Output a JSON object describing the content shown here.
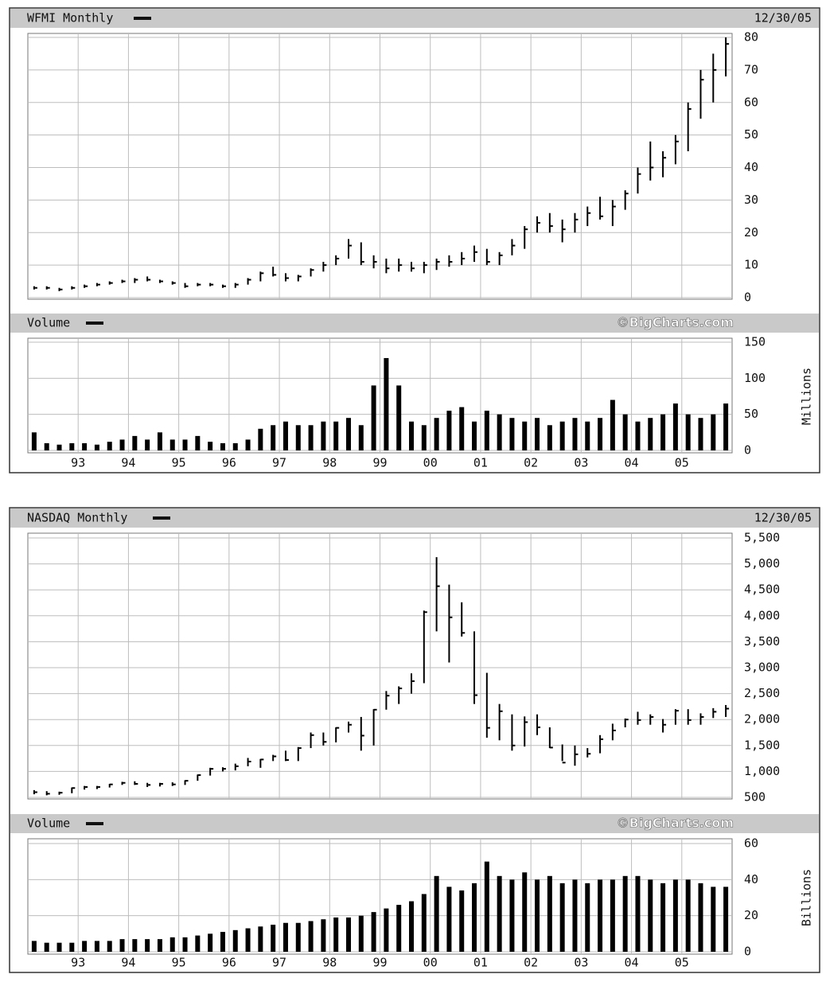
{
  "chart_data": [
    {
      "type": "ohlc",
      "title": "WFMI Monthly",
      "date": "12/30/05",
      "color": "#000000",
      "grid": true,
      "high": [
        3.5,
        3.5,
        3,
        3.5,
        4,
        4.5,
        5,
        5.5,
        6,
        6.5,
        5.5,
        5,
        4.5,
        4.5,
        4.5,
        4,
        4.5,
        6,
        8,
        9.5,
        7.5,
        7,
        9,
        11,
        13,
        18,
        17,
        13,
        12,
        12,
        11,
        11,
        12,
        13,
        14,
        16,
        15,
        14,
        18,
        22,
        25,
        26,
        24,
        26,
        28,
        31,
        30,
        33,
        40,
        48,
        45,
        50,
        60,
        70,
        75,
        80
      ],
      "low": [
        2.5,
        2.5,
        2,
        2.5,
        3,
        3.5,
        4,
        4.5,
        4.5,
        5,
        4.5,
        4,
        3,
        3.5,
        3.5,
        3,
        3,
        4,
        5,
        6.5,
        5,
        5,
        6.5,
        8,
        10,
        12,
        10,
        9,
        7.5,
        8,
        8,
        7.5,
        8.5,
        9.5,
        10,
        11,
        10,
        10,
        13,
        15,
        20,
        20,
        17,
        20,
        22,
        24,
        22,
        27,
        32,
        36,
        37,
        41,
        45,
        55,
        60,
        68
      ],
      "close": [
        3,
        3,
        2.5,
        3,
        3.5,
        4,
        4.5,
        5,
        5.5,
        5.5,
        5,
        4.5,
        3.5,
        4,
        4,
        3.5,
        4,
        5.5,
        7.5,
        7,
        6,
        6.5,
        8.5,
        10,
        12,
        16,
        11,
        11,
        9,
        10,
        9,
        10,
        11,
        11,
        12,
        14,
        11,
        13,
        16,
        21,
        23,
        22,
        21,
        24,
        26,
        25,
        28,
        32,
        38,
        40,
        43,
        48,
        58,
        67,
        70,
        78
      ],
      "ylim": [
        0,
        80
      ],
      "yticks": [
        0,
        10,
        20,
        30,
        40,
        50,
        60,
        70,
        80
      ]
    },
    {
      "type": "bar",
      "title": "Volume",
      "credit": "©BigCharts.com",
      "y_label": "Millions",
      "color": "#000000",
      "grid": true,
      "categories": [
        null,
        null,
        null,
        null,
        "93",
        null,
        null,
        null,
        "94",
        null,
        null,
        null,
        "95",
        null,
        null,
        null,
        "96",
        null,
        null,
        null,
        "97",
        null,
        null,
        null,
        "98",
        null,
        null,
        null,
        "99",
        null,
        null,
        null,
        "00",
        null,
        null,
        null,
        "01",
        null,
        null,
        null,
        "02",
        null,
        null,
        null,
        "03",
        null,
        null,
        null,
        "04",
        null,
        null,
        null,
        "05",
        null,
        null,
        null
      ],
      "values": [
        25,
        10,
        8,
        10,
        10,
        8,
        12,
        15,
        20,
        15,
        25,
        15,
        15,
        20,
        12,
        10,
        10,
        15,
        30,
        35,
        40,
        35,
        35,
        40,
        40,
        45,
        35,
        90,
        128,
        90,
        40,
        35,
        45,
        55,
        60,
        40,
        55,
        50,
        45,
        40,
        45,
        35,
        40,
        45,
        40,
        45,
        70,
        50,
        40,
        45,
        50,
        65,
        50,
        45,
        50,
        65
      ],
      "ylim": [
        0,
        150
      ],
      "yticks": [
        0,
        50,
        100,
        150
      ]
    },
    {
      "type": "ohlc",
      "title": "NASDAQ Monthly",
      "date": "12/30/05",
      "color": "#000000",
      "grid": true,
      "high": [
        640,
        620,
        610,
        690,
        720,
        720,
        760,
        800,
        810,
        780,
        780,
        790,
        830,
        940,
        1070,
        1080,
        1150,
        1260,
        1240,
        1320,
        1400,
        1470,
        1750,
        1750,
        1850,
        1960,
        2050,
        2200,
        2550,
        2640,
        2890,
        4100,
        5130,
        4600,
        4260,
        3700,
        2900,
        2300,
        2100,
        2060,
        2100,
        1850,
        1520,
        1500,
        1450,
        1700,
        1920,
        2020,
        2150,
        2100,
        2010,
        2200,
        2200,
        2120,
        2220,
        2280
      ],
      "low": [
        560,
        540,
        550,
        580,
        650,
        660,
        690,
        740,
        740,
        700,
        710,
        720,
        740,
        820,
        920,
        1000,
        1020,
        1100,
        1070,
        1200,
        1200,
        1200,
        1450,
        1500,
        1560,
        1750,
        1400,
        1500,
        2190,
        2300,
        2500,
        2700,
        3700,
        3100,
        3600,
        2300,
        1650,
        1600,
        1400,
        1480,
        1700,
        1450,
        1200,
        1110,
        1270,
        1350,
        1600,
        1850,
        1900,
        1900,
        1750,
        1900,
        1900,
        1900,
        2030,
        2050
      ],
      "close": [
        600,
        570,
        590,
        680,
        700,
        700,
        750,
        780,
        760,
        740,
        760,
        750,
        820,
        930,
        1050,
        1050,
        1100,
        1190,
        1230,
        1290,
        1220,
        1450,
        1700,
        1570,
        1840,
        1900,
        1690,
        2190,
        2460,
        2600,
        2740,
        4070,
        4570,
        3970,
        3670,
        2470,
        1840,
        2160,
        1500,
        1950,
        1850,
        1460,
        1170,
        1330,
        1340,
        1620,
        1790,
        2000,
        1990,
        2050,
        1900,
        2170,
        1990,
        2050,
        2150,
        2210
      ],
      "ylim": [
        500,
        5500
      ],
      "yticks": [
        500,
        {
          "value": 1000,
          "label": "1,000"
        },
        {
          "value": 1500,
          "label": "1,500"
        },
        {
          "value": 2000,
          "label": "2,000"
        },
        {
          "value": 2500,
          "label": "2,500"
        },
        {
          "value": 3000,
          "label": "3,000"
        },
        {
          "value": 3500,
          "label": "3,500"
        },
        {
          "value": 4000,
          "label": "4,000"
        },
        {
          "value": 4500,
          "label": "4,500"
        },
        {
          "value": 5000,
          "label": "5,000"
        },
        {
          "value": 5500,
          "label": "5,500"
        }
      ]
    },
    {
      "type": "bar",
      "title": "Volume",
      "credit": "©BigCharts.com",
      "y_label": "Billions",
      "color": "#000000",
      "grid": true,
      "categories": [
        null,
        null,
        null,
        null,
        "93",
        null,
        null,
        null,
        "94",
        null,
        null,
        null,
        "95",
        null,
        null,
        null,
        "96",
        null,
        null,
        null,
        "97",
        null,
        null,
        null,
        "98",
        null,
        null,
        null,
        "99",
        null,
        null,
        null,
        "00",
        null,
        null,
        null,
        "01",
        null,
        null,
        null,
        "02",
        null,
        null,
        null,
        "03",
        null,
        null,
        null,
        "04",
        null,
        null,
        null,
        "05",
        null,
        null,
        null
      ],
      "values": [
        6,
        5,
        5,
        5,
        6,
        6,
        6,
        7,
        7,
        7,
        7,
        8,
        8,
        9,
        10,
        11,
        12,
        13,
        14,
        15,
        16,
        16,
        17,
        18,
        19,
        19,
        20,
        22,
        24,
        26,
        28,
        32,
        42,
        36,
        34,
        38,
        50,
        42,
        40,
        44,
        40,
        42,
        38,
        40,
        38,
        40,
        40,
        42,
        42,
        40,
        38,
        40,
        40,
        38,
        36,
        36
      ],
      "ylim": [
        0,
        60
      ],
      "yticks": [
        0,
        20,
        40,
        60
      ]
    }
  ]
}
